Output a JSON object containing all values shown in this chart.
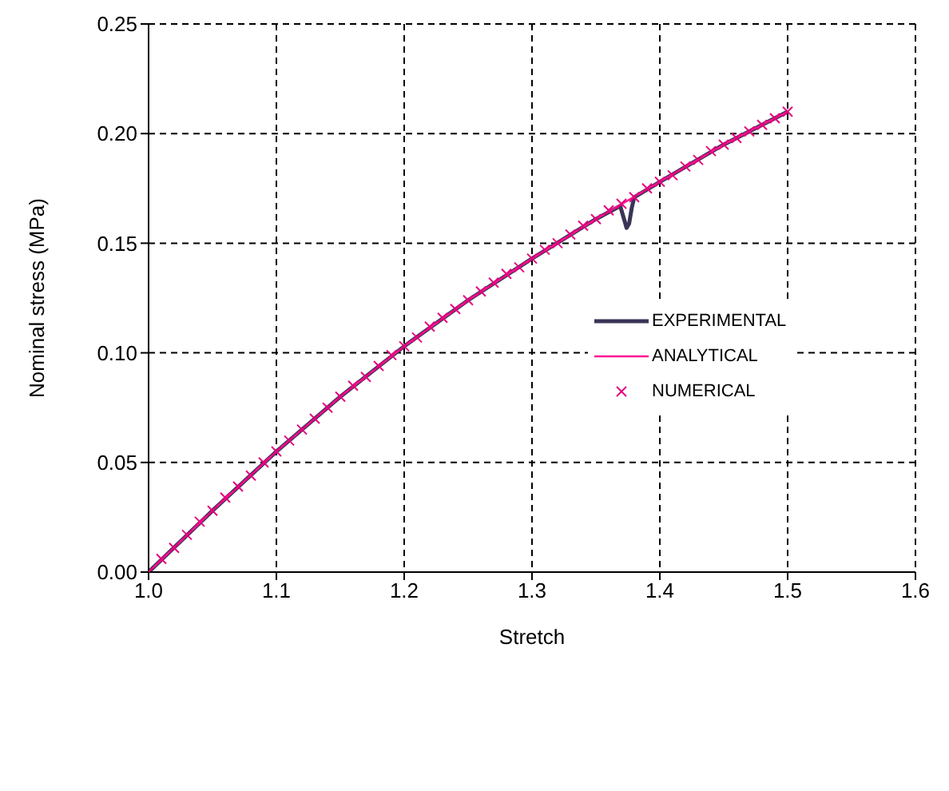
{
  "chart_data": {
    "type": "line",
    "xlabel": "Stretch",
    "ylabel": "Nominal stress (MPa)",
    "xlim": [
      1.0,
      1.6
    ],
    "xticks": [
      {
        "value": 1.0,
        "label": "1.0"
      },
      {
        "value": 1.1,
        "label": "1.1"
      },
      {
        "value": 1.2,
        "label": "1.2"
      },
      {
        "value": 1.3,
        "label": "1.3"
      },
      {
        "value": 1.4,
        "label": "1.4"
      },
      {
        "value": 1.5,
        "label": "1.5"
      },
      {
        "value": 1.6,
        "label": "1.6"
      }
    ],
    "ylim": [
      0,
      0.25
    ],
    "yticks": [
      {
        "value": 0,
        "label": "0.00"
      },
      {
        "value": 0.05,
        "label": "0.05"
      },
      {
        "value": 0.1,
        "label": "0.10"
      },
      {
        "value": 0.15,
        "label": "0.15"
      },
      {
        "value": 0.2,
        "label": "0.20"
      },
      {
        "value": 0.25,
        "label": "0.25"
      }
    ],
    "grid": true,
    "legend": "right",
    "series": [
      {
        "name": "EXPERIMENTAL",
        "color": "#3b3456",
        "marker": "none",
        "x": [
          1.0,
          1.05,
          1.1,
          1.15,
          1.2,
          1.25,
          1.3,
          1.35,
          1.369,
          1.372,
          1.374,
          1.376,
          1.378,
          1.38,
          1.4,
          1.45,
          1.5
        ],
        "values": [
          0.0,
          0.028,
          0.055,
          0.08,
          0.103,
          0.124,
          0.143,
          0.161,
          0.167,
          0.161,
          0.157,
          0.159,
          0.166,
          0.171,
          0.178,
          0.195,
          0.21
        ]
      },
      {
        "name": "ANALYTICAL",
        "color": "#ff1493",
        "marker": "none",
        "x": [
          1.0,
          1.05,
          1.1,
          1.15,
          1.2,
          1.25,
          1.3,
          1.35,
          1.4,
          1.45,
          1.5
        ],
        "values": [
          0.0,
          0.028,
          0.055,
          0.08,
          0.103,
          0.124,
          0.143,
          0.161,
          0.178,
          0.195,
          0.21
        ]
      },
      {
        "name": "NUMERICAL",
        "type": "scatter",
        "color": "#e6007e",
        "marker": "cross",
        "x": [
          1.0,
          1.01,
          1.02,
          1.03,
          1.04,
          1.05,
          1.06,
          1.07,
          1.08,
          1.09,
          1.1,
          1.11,
          1.12,
          1.13,
          1.14,
          1.15,
          1.16,
          1.17,
          1.18,
          1.19,
          1.2,
          1.21,
          1.22,
          1.23,
          1.24,
          1.25,
          1.26,
          1.27,
          1.28,
          1.29,
          1.3,
          1.31,
          1.32,
          1.33,
          1.34,
          1.35,
          1.36,
          1.37,
          1.38,
          1.39,
          1.4,
          1.41,
          1.42,
          1.43,
          1.44,
          1.45,
          1.46,
          1.47,
          1.48,
          1.49,
          1.5
        ],
        "values": [
          0.0,
          0.006,
          0.011,
          0.017,
          0.023,
          0.028,
          0.034,
          0.039,
          0.044,
          0.05,
          0.055,
          0.06,
          0.065,
          0.07,
          0.075,
          0.08,
          0.085,
          0.089,
          0.094,
          0.099,
          0.103,
          0.107,
          0.112,
          0.116,
          0.12,
          0.124,
          0.128,
          0.132,
          0.136,
          0.139,
          0.143,
          0.147,
          0.15,
          0.154,
          0.158,
          0.161,
          0.165,
          0.168,
          0.171,
          0.175,
          0.178,
          0.181,
          0.185,
          0.188,
          0.192,
          0.195,
          0.198,
          0.201,
          0.204,
          0.207,
          0.21
        ]
      }
    ]
  }
}
